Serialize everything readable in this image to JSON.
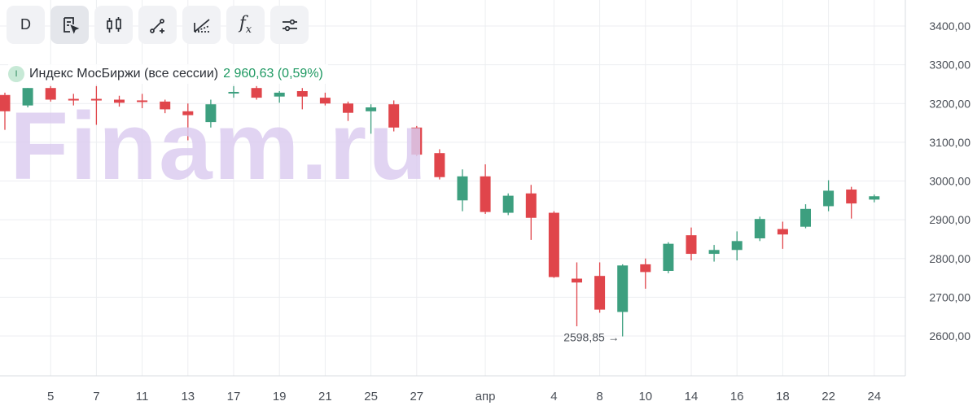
{
  "toolbar": {
    "period_label": "D",
    "buttons": [
      {
        "icon": "period-selector",
        "active": false
      },
      {
        "icon": "cursor-tool-icon",
        "active": true
      },
      {
        "icon": "candlestick-type-icon",
        "active": false
      },
      {
        "icon": "trend-line-icon",
        "active": false
      },
      {
        "icon": "fibonacci-fan-icon",
        "active": false
      },
      {
        "icon": "indicators-icon",
        "active": false
      },
      {
        "icon": "settings-sliders-icon",
        "active": false
      }
    ],
    "fx_label": "f",
    "fx_sub": "x"
  },
  "legend": {
    "badge": "I",
    "name": "Индекс МосБиржи (все сессии)",
    "value": "2 960,63 (0,59%)",
    "value_color": "#1e9962"
  },
  "watermark": "Finam.ru",
  "colors": {
    "up": "#3d9f7f",
    "down": "#e0454b",
    "grid": "#eceef1",
    "axis_text": "#4a4f57"
  },
  "chart_data": {
    "type": "candlestick",
    "ylim": [
      2520,
      3460
    ],
    "y_ticks": [
      2600,
      2700,
      2800,
      2900,
      3000,
      3100,
      3200,
      3300,
      3400
    ],
    "y_tick_labels": [
      "2600,00",
      "2700,00",
      "2800,00",
      "2900,00",
      "3000,00",
      "3100,00",
      "3200,00",
      "3300,00",
      "3400,00"
    ],
    "x_labels": [
      {
        "label": "5",
        "index": 2
      },
      {
        "label": "7",
        "index": 4
      },
      {
        "label": "11",
        "index": 6
      },
      {
        "label": "13",
        "index": 8
      },
      {
        "label": "17",
        "index": 10
      },
      {
        "label": "19",
        "index": 12
      },
      {
        "label": "21",
        "index": 14
      },
      {
        "label": "25",
        "index": 16
      },
      {
        "label": "27",
        "index": 18
      },
      {
        "label": "апр",
        "index": 21
      },
      {
        "label": "4",
        "index": 24
      },
      {
        "label": "8",
        "index": 26
      },
      {
        "label": "10",
        "index": 28
      },
      {
        "label": "14",
        "index": 30
      },
      {
        "label": "16",
        "index": 32
      },
      {
        "label": "18",
        "index": 34
      },
      {
        "label": "22",
        "index": 36
      },
      {
        "label": "24",
        "index": 38
      }
    ],
    "candles": [
      {
        "o": 3222,
        "h": 3228,
        "c": 3180,
        "l": 3132
      },
      {
        "o": 3195,
        "h": 3240,
        "c": 3240,
        "l": 3190
      },
      {
        "o": 3240,
        "h": 3245,
        "c": 3210,
        "l": 3205
      },
      {
        "o": 3212,
        "h": 3225,
        "c": 3208,
        "l": 3195
      },
      {
        "o": 3212,
        "h": 3245,
        "c": 3208,
        "l": 3145
      },
      {
        "o": 3210,
        "h": 3220,
        "c": 3202,
        "l": 3192
      },
      {
        "o": 3208,
        "h": 3225,
        "c": 3206,
        "l": 3188
      },
      {
        "o": 3205,
        "h": 3210,
        "c": 3185,
        "l": 3175
      },
      {
        "o": 3180,
        "h": 3200,
        "c": 3170,
        "l": 3105
      },
      {
        "o": 3152,
        "h": 3210,
        "c": 3198,
        "l": 3138
      },
      {
        "o": 3230,
        "h": 3245,
        "c": 3230,
        "l": 3215
      },
      {
        "o": 3240,
        "h": 3245,
        "c": 3215,
        "l": 3210
      },
      {
        "o": 3218,
        "h": 3232,
        "c": 3228,
        "l": 3202
      },
      {
        "o": 3232,
        "h": 3240,
        "c": 3218,
        "l": 3185
      },
      {
        "o": 3215,
        "h": 3228,
        "c": 3200,
        "l": 3195
      },
      {
        "o": 3200,
        "h": 3205,
        "c": 3176,
        "l": 3155
      },
      {
        "o": 3180,
        "h": 3198,
        "c": 3190,
        "l": 3122
      },
      {
        "o": 3198,
        "h": 3208,
        "c": 3138,
        "l": 3128
      },
      {
        "o": 3138,
        "h": 3142,
        "c": 3068,
        "l": 3064
      },
      {
        "o": 3072,
        "h": 3082,
        "c": 3010,
        "l": 3004
      },
      {
        "o": 2950,
        "h": 3030,
        "c": 3012,
        "l": 2922
      },
      {
        "o": 3012,
        "h": 3043,
        "c": 2920,
        "l": 2915
      },
      {
        "o": 2918,
        "h": 2968,
        "c": 2962,
        "l": 2912
      },
      {
        "o": 2968,
        "h": 2990,
        "c": 2905,
        "l": 2848
      },
      {
        "o": 2918,
        "h": 2922,
        "c": 2752,
        "l": 2750
      },
      {
        "o": 2748,
        "h": 2790,
        "c": 2738,
        "l": 2625
      },
      {
        "o": 2755,
        "h": 2790,
        "c": 2668,
        "l": 2660
      },
      {
        "o": 2662,
        "h": 2785,
        "c": 2782,
        "l": 2598.85
      },
      {
        "o": 2785,
        "h": 2800,
        "c": 2765,
        "l": 2722
      },
      {
        "o": 2768,
        "h": 2842,
        "c": 2838,
        "l": 2762
      },
      {
        "o": 2860,
        "h": 2880,
        "c": 2812,
        "l": 2795
      },
      {
        "o": 2812,
        "h": 2835,
        "c": 2822,
        "l": 2792
      },
      {
        "o": 2822,
        "h": 2870,
        "c": 2845,
        "l": 2795
      },
      {
        "o": 2852,
        "h": 2908,
        "c": 2902,
        "l": 2845
      },
      {
        "o": 2876,
        "h": 2895,
        "c": 2862,
        "l": 2825
      },
      {
        "o": 2882,
        "h": 2940,
        "c": 2928,
        "l": 2878
      },
      {
        "o": 2935,
        "h": 3002,
        "c": 2975,
        "l": 2922
      },
      {
        "o": 2978,
        "h": 2985,
        "c": 2942,
        "l": 2903
      },
      {
        "o": 2952,
        "h": 2965,
        "c": 2960.63,
        "l": 2945
      }
    ],
    "annotation": {
      "text": "2598,85 →",
      "candle_index": 27,
      "value": 2598.85
    }
  }
}
